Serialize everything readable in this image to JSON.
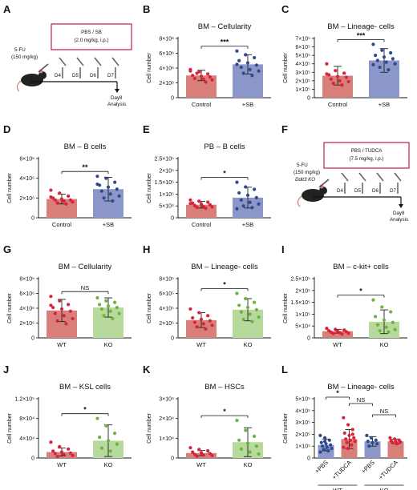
{
  "panel_letters": [
    "A",
    "B",
    "C",
    "D",
    "E",
    "F",
    "G",
    "H",
    "I",
    "J",
    "K",
    "L"
  ],
  "colors": {
    "control": "#d97f7a",
    "sb": "#8c97c9",
    "wt": "#d97f7a",
    "ko": "#b7d99c",
    "control_dot": "#d8233a",
    "sb_dot": "#2f4a8c",
    "ko_dot": "#6cb33f",
    "l_wt_pbs": "#8c97c9"
  },
  "schematic_a": {
    "box_label_1": "PBS / SB",
    "box_label_2": "(2.0 mg/kg, i.p.)",
    "drug_1": "5-FU",
    "drug_2": "(150 mg/kg)",
    "days": [
      "D4",
      "D5",
      "D6",
      "D7"
    ],
    "end_1": "Day8",
    "end_2": "Analysis"
  },
  "schematic_f": {
    "box_label_1": "PBS / TUDCA",
    "box_label_2": "(7.5 mg/kg, i.p.)",
    "drug_1": "5-FU",
    "drug_2": "(150 mg/kg)",
    "drug_3": "Ddit3 KO",
    "days": [
      "D4",
      "D5",
      "D6",
      "D7"
    ],
    "end_1": "Day8",
    "end_2": "Analysis"
  },
  "chart_data": [
    {
      "panel": "B",
      "type": "bar",
      "title": "BM – Cellularity",
      "ylabel": "Cell number",
      "categories": [
        "Control",
        "+SB"
      ],
      "values": [
        3000000.0,
        4500000.0
      ],
      "errors": [
        700000.0,
        1300000.0
      ],
      "ylim": [
        0,
        8000000.0
      ],
      "yticks": [
        "0",
        "2×10⁶",
        "4×10⁶",
        "6×10⁶",
        "8×10⁶"
      ],
      "significance": "***",
      "points": [
        [
          3800000.0,
          3500000.0,
          3200000.0,
          3000000.0,
          2900000.0,
          2800000.0,
          2600000.0,
          2500000.0,
          2400000.0,
          3300000.0,
          2100000.0,
          3600000.0
        ],
        [
          6300000.0,
          5800000.0,
          5400000.0,
          5000000.0,
          4700000.0,
          4400000.0,
          4100000.0,
          3800000.0,
          3600000.0,
          3300000.0,
          3000000.0,
          4500000.0
        ]
      ]
    },
    {
      "panel": "C",
      "type": "bar",
      "title": "BM – Lineage- cells",
      "ylabel": "Cell number",
      "categories": [
        "Control",
        "+SB"
      ],
      "values": [
        260000.0,
        440000.0
      ],
      "errors": [
        110000.0,
        140000.0
      ],
      "ylim": [
        0,
        700000.0
      ],
      "yticks": [
        "0",
        "1×10⁵",
        "2×10⁵",
        "3×10⁵",
        "4×10⁵",
        "5×10⁵",
        "6×10⁵",
        "7×10⁵"
      ],
      "significance": "***",
      "points": [
        [
          400000.0,
          320000.0,
          290000.0,
          270000.0,
          250000.0,
          240000.0,
          220000.0,
          200000.0,
          190000.0,
          170000.0,
          150000.0,
          280000.0
        ],
        [
          630000.0,
          560000.0,
          530000.0,
          500000.0,
          480000.0,
          460000.0,
          440000.0,
          420000.0,
          400000.0,
          360000.0,
          330000.0,
          390000.0
        ]
      ]
    },
    {
      "panel": "D",
      "type": "bar",
      "title": "BM – B cells",
      "ylabel": "Cell number",
      "categories": [
        "Control",
        "+SB"
      ],
      "values": [
        1900000.0,
        2900000.0
      ],
      "errors": [
        500000.0,
        1200000.0
      ],
      "ylim": [
        0,
        6000000.0
      ],
      "yticks": [
        "0",
        "2×10⁶",
        "4×10⁶",
        "6×10⁶"
      ],
      "significance": "**",
      "points": [
        [
          2800000.0,
          2500000.0,
          2200000.0,
          2000000.0,
          1900000.0,
          1800000.0,
          1800000.0,
          1700000.0,
          1600000.0,
          1500000.0,
          1400000.0,
          2100000.0
        ],
        [
          4200000.0,
          4000000.0,
          3600000.0,
          3300000.0,
          3100000.0,
          2900000.0,
          2700000.0,
          2400000.0,
          2200000.0,
          2000000.0,
          1700000.0,
          3400000.0
        ]
      ]
    },
    {
      "panel": "E",
      "type": "bar",
      "title": "PB – B cells",
      "ylabel": "Cell number",
      "categories": [
        "Control",
        "+SB"
      ],
      "values": [
        55000.0,
        85000.0
      ],
      "errors": [
        14000.0,
        44000.0
      ],
      "ylim": [
        0,
        250000.0
      ],
      "yticks": [
        "0",
        "5×10⁴",
        "1×10⁵",
        "1.5×10⁵",
        "2×10⁵",
        "2.5×10⁵"
      ],
      "significance": "*",
      "points": [
        [
          75000.0,
          70000.0,
          66000.0,
          62000.0,
          58000.0,
          55000.0,
          52000.0,
          48000.0,
          46000.0,
          44000.0,
          40000.0,
          60000.0
        ],
        [
          150000.0,
          130000.0,
          120000.0,
          105000.0,
          95000.0,
          85000.0,
          75000.0,
          65000.0,
          58000.0,
          50000.0,
          43000.0,
          38000.0
        ]
      ]
    },
    {
      "panel": "G",
      "type": "bar",
      "title": "BM – Cellularity",
      "ylabel": "Cell number",
      "categories": [
        "WT",
        "KO"
      ],
      "values": [
        3700000.0,
        4100000.0
      ],
      "errors": [
        1500000.0,
        1300000.0
      ],
      "ylim": [
        0,
        8000000.0
      ],
      "yticks": [
        "0",
        "2×10⁶",
        "4×10⁶",
        "6×10⁶",
        "8×10⁶"
      ],
      "significance": "NS",
      "points": [
        [
          5600000.0,
          5000000.0,
          4500000.0,
          4100000.0,
          3900000.0,
          3600000.0,
          3300000.0,
          3000000.0,
          2600000.0,
          2300000.0,
          1900000.0,
          4400000.0
        ],
        [
          5400000.0,
          5000000.0,
          4800000.0,
          4500000.0,
          4300000.0,
          4100000.0,
          3900000.0,
          3600000.0,
          3300000.0,
          3000000.0,
          2600000.0
        ]
      ]
    },
    {
      "panel": "H",
      "type": "bar",
      "title": "BM – Lineage- cells",
      "ylabel": "Cell number",
      "categories": [
        "WT",
        "KO"
      ],
      "values": [
        240000.0,
        380000.0
      ],
      "errors": [
        100000.0,
        150000.0
      ],
      "ylim": [
        0,
        800000.0
      ],
      "yticks": [
        "0",
        "2×10⁵",
        "4×10⁵",
        "6×10⁵",
        "8×10⁵"
      ],
      "significance": "*",
      "points": [
        [
          390000.0,
          340000.0,
          300000.0,
          270000.0,
          250000.0,
          230000.0,
          210000.0,
          190000.0,
          170000.0,
          150000.0,
          120000.0
        ],
        [
          600000.0,
          530000.0,
          480000.0,
          440000.0,
          410000.0,
          380000.0,
          350000.0,
          320000.0,
          280000.0,
          250000.0,
          220000.0
        ]
      ]
    },
    {
      "panel": "I",
      "type": "bar",
      "title": "BM – c-kit+ cells",
      "ylabel": "Cell number",
      "categories": [
        "WT",
        "KO"
      ],
      "values": [
        28000.0,
        68000.0
      ],
      "errors": [
        8000.0,
        50000.0
      ],
      "ylim": [
        0,
        250000.0
      ],
      "yticks": [
        "0",
        "5×10⁴",
        "1×10⁵",
        "1.5×10⁵",
        "2×10⁵",
        "2.5×10⁵"
      ],
      "significance": "*",
      "points": [
        [
          40000.0,
          36000.0,
          33000.0,
          30000.0,
          28000.0,
          26000.0,
          24000.0,
          22000.0,
          20000.0,
          18000.0,
          16000.0
        ],
        [
          160000.0,
          130000.0,
          110000.0,
          90000.0,
          75000.0,
          65000.0,
          55000.0,
          45000.0,
          35000.0,
          30000.0,
          25000.0
        ]
      ]
    },
    {
      "panel": "J",
      "type": "bar",
      "title": "BM – KSL cells",
      "ylabel": "Cell number",
      "categories": [
        "WT",
        "KO"
      ],
      "values": [
        12000.0,
        35000.0
      ],
      "errors": [
        8000.0,
        32000.0
      ],
      "ylim": [
        0,
        120000.0
      ],
      "yticks": [
        "0",
        "4×10⁴",
        "8×10⁴",
        "1.2×10⁵"
      ],
      "significance": "*",
      "points": [
        [
          32000.0,
          23000.0,
          18000.0,
          14000.0,
          12000.0,
          10000.0,
          9000.0,
          7000.0,
          5000.0,
          3000.0
        ],
        [
          80000.0,
          65000.0,
          50000.0,
          42000.0,
          35000.0,
          28000.0,
          20000.0,
          14000.0
        ]
      ]
    },
    {
      "panel": "K",
      "type": "bar",
      "title": "BM – HSCs",
      "ylabel": "Cell number",
      "categories": [
        "WT",
        "KO"
      ],
      "values": [
        2500.0,
        8000.0
      ],
      "errors": [
        1300.0,
        7300.0
      ],
      "ylim": [
        0,
        30000.0
      ],
      "yticks": [
        "0",
        "1×10⁴",
        "2×10⁴",
        "3×10⁴"
      ],
      "significance": "*",
      "points": [
        [
          5200.0,
          4300.0,
          3600.0,
          3000.0,
          2600.0,
          2200.0,
          1800.0,
          1500.0,
          1200.0,
          900.0
        ],
        [
          19000.0,
          14000.0,
          11000.0,
          9000.0,
          7500.0,
          6000.0,
          4500.0,
          3000.0,
          2000.0
        ]
      ]
    },
    {
      "panel": "L",
      "type": "bar",
      "title": "BM – Lineage- cells",
      "ylabel": "Cell number",
      "categories": [
        "+PBS",
        "+TUDCA",
        "+PBS",
        "+TUDCA"
      ],
      "groups": [
        "WT",
        "KO"
      ],
      "values": [
        110000.0,
        160000.0,
        140000.0,
        140000.0
      ],
      "errors": [
        50000.0,
        80000.0,
        40000.0,
        20000.0
      ],
      "ylim": [
        0,
        500000.0
      ],
      "yticks": [
        "0",
        "1×10⁵",
        "2×10⁵",
        "3×10⁵",
        "4×10⁵",
        "5×10⁵"
      ],
      "significance": [
        {
          "between": [
            0,
            1
          ],
          "label": "*"
        },
        {
          "between": [
            1,
            2
          ],
          "label": "NS"
        },
        {
          "between": [
            2,
            3
          ],
          "label": "NS"
        }
      ],
      "points": [
        [
          190000.0,
          170000.0,
          150000.0,
          130000.0,
          120000.0,
          110000.0,
          100000.0,
          90000.0,
          80000.0,
          70000.0,
          60000.0,
          50000.0,
          140000.0
        ],
        [
          340000.0,
          280000.0,
          240000.0,
          210000.0,
          190000.0,
          170000.0,
          160000.0,
          150000.0,
          140000.0,
          130000.0,
          110000.0,
          90000.0,
          80000.0,
          200000.0
        ],
        [
          190000.0,
          170000.0,
          150000.0,
          140000.0,
          130000.0,
          120000.0,
          100000.0
        ],
        [
          170000.0,
          160000.0,
          150000.0,
          145000.0,
          140000.0,
          135000.0,
          130000.0,
          120000.0
        ]
      ]
    }
  ]
}
